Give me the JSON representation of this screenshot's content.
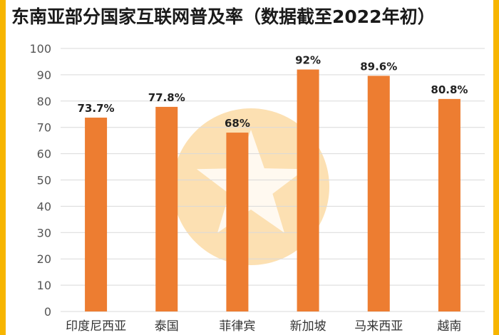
{
  "title": "东南亚部分国家互联网普及率（数据截至2022年初）",
  "colors": {
    "frame": "#f7b500",
    "bar": "#ed7d31",
    "grid": "#d9d9d9",
    "watermark": "#f5a623"
  },
  "chart_data": {
    "type": "bar",
    "title": "东南亚部分国家互联网普及率（数据截至2022年初）",
    "categories": [
      "印度尼西亚",
      "泰国",
      "菲律宾",
      "新加坡",
      "马来西亚",
      "越南"
    ],
    "values": [
      73.7,
      77.8,
      68,
      92,
      89.6,
      80.8
    ],
    "data_labels": [
      "73.7%",
      "77.8%",
      "68%",
      "92%",
      "89.6%",
      "80.8%"
    ],
    "yticks": [
      "0",
      "10",
      "20",
      "30",
      "40",
      "50",
      "60",
      "70",
      "80",
      "90",
      "100"
    ],
    "ylim": [
      0,
      100
    ],
    "grid": true,
    "xlabel": "",
    "ylabel": ""
  }
}
